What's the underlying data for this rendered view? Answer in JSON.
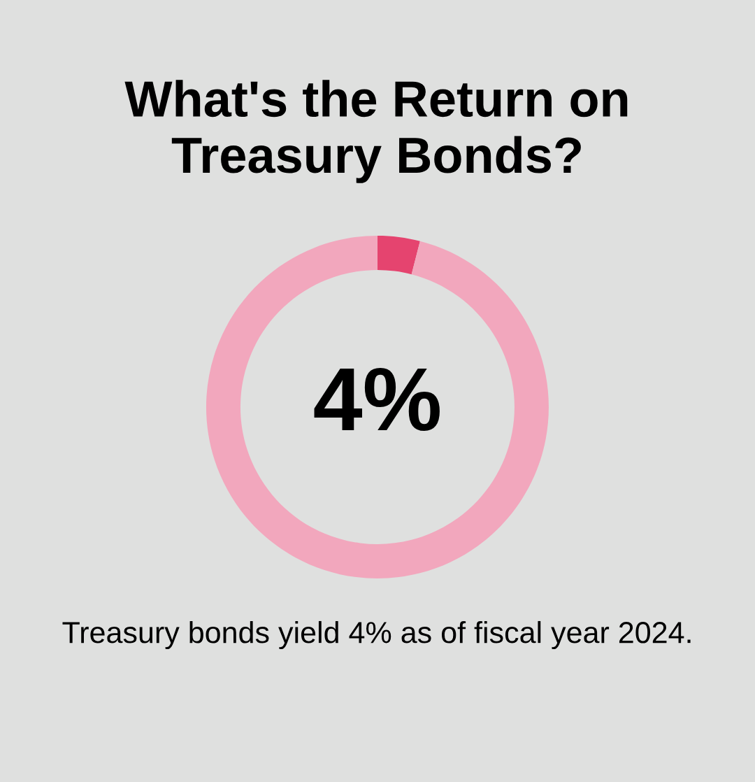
{
  "chart_data": {
    "type": "donut",
    "title": "What's the Return on\nTreasury Bonds?",
    "categories": [
      null,
      null
    ],
    "values": [
      4,
      96
    ],
    "colors": [
      "#e5446f",
      "#f2a7bd"
    ],
    "annotations": [
      "4%",
      "Treasury bonds yield 4% as of fiscal year 2024."
    ]
  }
}
